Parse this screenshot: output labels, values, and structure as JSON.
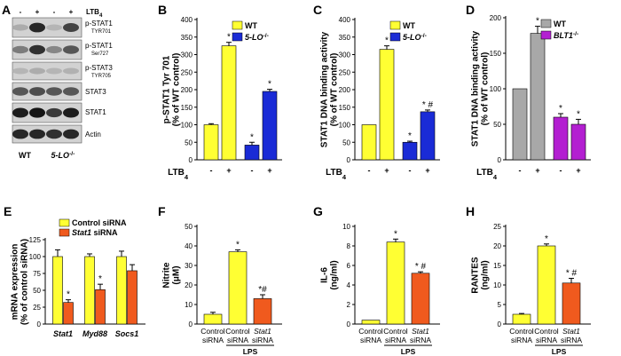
{
  "colors": {
    "yellow": "#ffff33",
    "blue": "#1a2bd6",
    "orange": "#f05a1e",
    "gray": "#a8a8a8",
    "purple": "#b31fd1"
  },
  "panel_letters": [
    "A",
    "B",
    "C",
    "D",
    "E",
    "F",
    "G",
    "H"
  ],
  "blot": {
    "header": [
      "-",
      "+",
      "-",
      "+",
      "LTB4"
    ],
    "labels": [
      "p-STAT1",
      "p-STAT1",
      "p-STAT3",
      "STAT3",
      "STAT1",
      "Actin"
    ],
    "sublabels": [
      "TYR701",
      "Ser727",
      "TYR705"
    ],
    "genotypes": [
      "WT",
      "5-LO-/-"
    ]
  },
  "chart_data": [
    {
      "id": "B",
      "type": "bar",
      "ylabel": "p-STAT1 Tyr 701 (% of WT control)",
      "ylim": [
        0,
        400
      ],
      "yticks": [
        0,
        50,
        100,
        150,
        200,
        250,
        300,
        350,
        400
      ],
      "treatment_label": "LTB4",
      "treatment_signs": [
        "-",
        "+",
        "-",
        "+"
      ],
      "legend": [
        "WT",
        "5-LO-/-"
      ],
      "bars": [
        {
          "value": 100,
          "err": 3,
          "group": 0,
          "mark": ""
        },
        {
          "value": 325,
          "err": 10,
          "group": 0,
          "mark": "*"
        },
        {
          "value": 42,
          "err": 8,
          "group": 1,
          "mark": "*"
        },
        {
          "value": 195,
          "err": 6,
          "group": 1,
          "mark": "*"
        }
      ]
    },
    {
      "id": "C",
      "type": "bar",
      "ylabel": "STAT1 DNA binding activity (% of WT control)",
      "ylim": [
        0,
        400
      ],
      "yticks": [
        0,
        50,
        100,
        150,
        200,
        250,
        300,
        350,
        400
      ],
      "treatment_label": "LTB4",
      "treatment_signs": [
        "-",
        "+",
        "-",
        "+"
      ],
      "legend": [
        "WT",
        "5-LO-/-"
      ],
      "bars": [
        {
          "value": 100,
          "err": 0,
          "group": 0,
          "mark": ""
        },
        {
          "value": 315,
          "err": 10,
          "group": 0,
          "mark": "*"
        },
        {
          "value": 50,
          "err": 3,
          "group": 1,
          "mark": "*"
        },
        {
          "value": 137,
          "err": 5,
          "group": 1,
          "mark": "* #"
        }
      ]
    },
    {
      "id": "D",
      "type": "bar",
      "ylabel": "STAT1 DNA binding activity (% of WT control)",
      "ylim": [
        0,
        200
      ],
      "yticks": [
        0,
        50,
        100,
        150,
        200
      ],
      "treatment_label": "LTB4",
      "treatment_signs": [
        "-",
        "+",
        "-",
        "+"
      ],
      "legend": [
        "WT",
        "BLT1-/-"
      ],
      "bars": [
        {
          "value": 100,
          "err": 0,
          "group": 0,
          "mark": ""
        },
        {
          "value": 178,
          "err": 10,
          "group": 0,
          "mark": "*"
        },
        {
          "value": 60,
          "err": 5,
          "group": 1,
          "mark": "*"
        },
        {
          "value": 50,
          "err": 7,
          "group": 1,
          "mark": "*"
        }
      ]
    },
    {
      "id": "E",
      "type": "bar",
      "ylabel": "mRNA expression (% of control siRNA)",
      "ylim": [
        0,
        125
      ],
      "yticks": [
        0,
        25,
        50,
        75,
        100,
        125
      ],
      "categories": [
        "Stat1",
        "Myd88",
        "Socs1"
      ],
      "legend": [
        "Control siRNA",
        "Stat1 siRNA"
      ],
      "series": [
        {
          "name": "Control siRNA",
          "values": [
            100,
            100,
            100
          ],
          "err": [
            10,
            4,
            8
          ],
          "marks": [
            "",
            "",
            ""
          ]
        },
        {
          "name": "Stat1 siRNA",
          "values": [
            32,
            51,
            79
          ],
          "err": [
            4,
            8,
            9
          ],
          "marks": [
            "*",
            "*",
            ""
          ]
        }
      ]
    },
    {
      "id": "F",
      "type": "bar",
      "ylabel": "Nitrite (μM)",
      "ylim": [
        0,
        50
      ],
      "yticks": [
        0,
        10,
        20,
        30,
        40,
        50
      ],
      "categories": [
        "Control siRNA",
        "Control siRNA",
        "Stat1 siRNA"
      ],
      "group_label": "LPS",
      "bars": [
        {
          "value": 5,
          "err": 1,
          "color": "yellow",
          "mark": ""
        },
        {
          "value": 37,
          "err": 1,
          "color": "yellow",
          "mark": "*"
        },
        {
          "value": 13,
          "err": 2,
          "color": "orange",
          "mark": "*#"
        }
      ]
    },
    {
      "id": "G",
      "type": "bar",
      "ylabel": "IL-6 (ng/ml)",
      "ylim": [
        0,
        10
      ],
      "yticks": [
        0,
        2,
        4,
        6,
        8,
        10
      ],
      "categories": [
        "Control siRNA",
        "Control siRNA",
        "Stat1 siRNA"
      ],
      "group_label": "LPS",
      "bars": [
        {
          "value": 0.4,
          "err": 0,
          "color": "yellow",
          "mark": ""
        },
        {
          "value": 8.4,
          "err": 0.3,
          "color": "yellow",
          "mark": "*"
        },
        {
          "value": 5.2,
          "err": 0.15,
          "color": "orange",
          "mark": "* #"
        }
      ]
    },
    {
      "id": "H",
      "type": "bar",
      "ylabel": "RANTES (ng/ml)",
      "ylim": [
        0,
        25
      ],
      "yticks": [
        0,
        5,
        10,
        15,
        20,
        25
      ],
      "categories": [
        "Control siRNA",
        "Control siRNA",
        "Stat1 siRNA"
      ],
      "group_label": "LPS",
      "bars": [
        {
          "value": 2.5,
          "err": 0.2,
          "color": "yellow",
          "mark": ""
        },
        {
          "value": 20,
          "err": 0.5,
          "color": "yellow",
          "mark": "*"
        },
        {
          "value": 10.5,
          "err": 1.2,
          "color": "orange",
          "mark": "* #"
        }
      ]
    }
  ]
}
